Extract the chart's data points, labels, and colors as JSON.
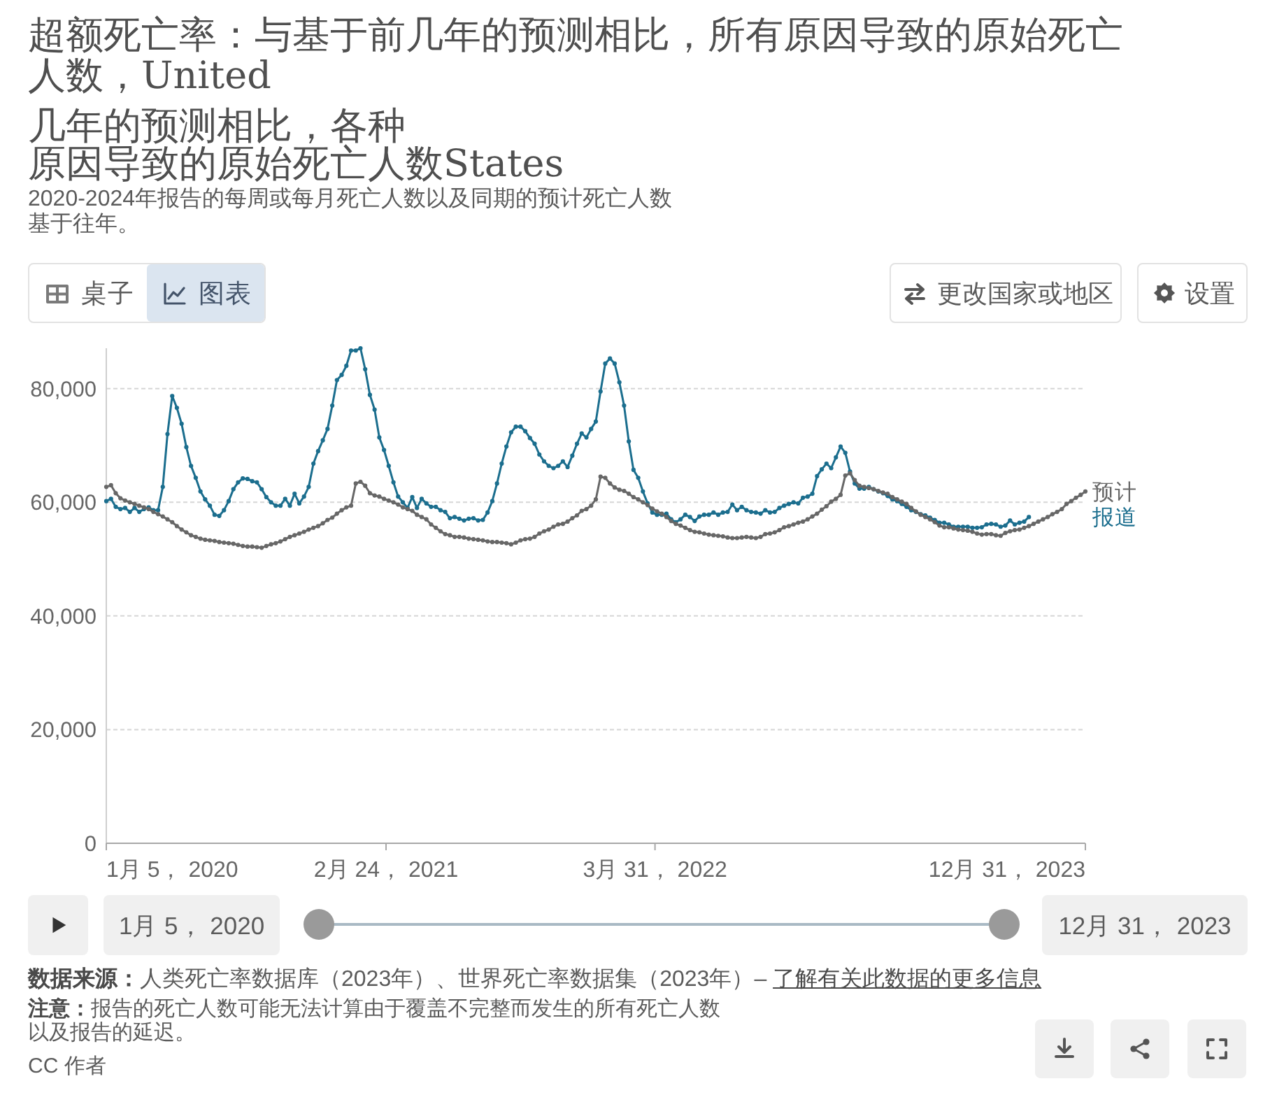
{
  "chart_data": {
    "type": "line",
    "title": "超额死亡率：与基于前几年的预测相比，所有原因导致的原始死亡人数，United",
    "subtitle": "2020-2024年报告的每周或每月死亡人数以及同期的预计死亡人数基于往年。",
    "x": [
      "2020-01-05",
      "2020-01-12",
      "2020-01-19",
      "2020-01-26",
      "2020-02-02",
      "2020-02-09",
      "2020-02-16",
      "2020-02-23",
      "2020-03-01",
      "2020-03-08",
      "2020-03-15",
      "2020-03-22",
      "2020-03-29",
      "2020-04-05",
      "2020-04-12",
      "2020-04-19",
      "2020-04-26",
      "2020-05-03",
      "2020-05-10",
      "2020-05-17",
      "2020-05-24",
      "2020-05-31",
      "2020-06-07",
      "2020-06-14",
      "2020-06-21",
      "2020-06-28",
      "2020-07-05",
      "2020-07-12",
      "2020-07-19",
      "2020-07-26",
      "2020-08-02",
      "2020-08-09",
      "2020-08-16",
      "2020-08-23",
      "2020-08-30",
      "2020-09-06",
      "2020-09-13",
      "2020-09-20",
      "2020-09-27",
      "2020-10-04",
      "2020-10-11",
      "2020-10-18",
      "2020-10-25",
      "2020-11-01",
      "2020-11-08",
      "2020-11-15",
      "2020-11-22",
      "2020-11-29",
      "2020-12-06",
      "2020-12-13",
      "2020-12-20",
      "2020-12-27",
      "2021-01-03",
      "2021-01-10",
      "2021-01-17",
      "2021-01-24",
      "2021-01-31",
      "2021-02-07",
      "2021-02-14",
      "2021-02-21",
      "2021-02-28",
      "2021-03-07",
      "2021-03-14",
      "2021-03-21",
      "2021-03-28",
      "2021-04-04",
      "2021-04-11",
      "2021-04-18",
      "2021-04-25",
      "2021-05-02",
      "2021-05-09",
      "2021-05-16",
      "2021-05-23",
      "2021-05-30",
      "2021-06-06",
      "2021-06-13",
      "2021-06-20",
      "2021-06-27",
      "2021-07-04",
      "2021-07-11",
      "2021-07-18",
      "2021-07-25",
      "2021-08-01",
      "2021-08-08",
      "2021-08-15",
      "2021-08-22",
      "2021-08-29",
      "2021-09-05",
      "2021-09-12",
      "2021-09-19",
      "2021-09-26",
      "2021-10-03",
      "2021-10-10",
      "2021-10-17",
      "2021-10-24",
      "2021-10-31",
      "2021-11-07",
      "2021-11-14",
      "2021-11-21",
      "2021-11-28",
      "2021-12-05",
      "2021-12-12",
      "2021-12-19",
      "2021-12-26",
      "2022-01-02",
      "2022-01-09",
      "2022-01-16",
      "2022-01-23",
      "2022-01-30",
      "2022-02-06",
      "2022-02-13",
      "2022-02-20",
      "2022-02-27",
      "2022-03-06",
      "2022-03-13",
      "2022-03-20",
      "2022-03-27",
      "2022-04-03",
      "2022-04-10",
      "2022-04-17",
      "2022-04-24",
      "2022-05-01",
      "2022-05-08",
      "2022-05-15",
      "2022-05-22",
      "2022-05-29",
      "2022-06-05",
      "2022-06-12",
      "2022-06-19",
      "2022-06-26",
      "2022-07-03",
      "2022-07-10",
      "2022-07-17",
      "2022-07-24",
      "2022-07-31",
      "2022-08-07",
      "2022-08-14",
      "2022-08-21",
      "2022-08-28",
      "2022-09-04",
      "2022-09-11",
      "2022-09-18",
      "2022-09-25",
      "2022-10-02",
      "2022-10-09",
      "2022-10-16",
      "2022-10-23",
      "2022-10-30",
      "2022-11-06",
      "2022-11-13",
      "2022-11-20",
      "2022-11-27",
      "2022-12-04",
      "2022-12-11",
      "2022-12-18",
      "2022-12-25",
      "2023-01-01",
      "2023-01-08",
      "2023-01-15",
      "2023-01-22",
      "2023-01-29",
      "2023-02-05",
      "2023-02-12",
      "2023-02-19",
      "2023-02-26",
      "2023-03-05",
      "2023-03-12",
      "2023-03-19",
      "2023-03-26",
      "2023-04-02",
      "2023-04-09",
      "2023-04-16",
      "2023-04-23",
      "2023-04-30",
      "2023-05-07",
      "2023-05-14",
      "2023-05-21",
      "2023-05-28",
      "2023-06-04",
      "2023-06-11",
      "2023-06-18",
      "2023-06-25",
      "2023-07-02",
      "2023-07-09",
      "2023-07-16",
      "2023-07-23",
      "2023-07-30",
      "2023-08-06",
      "2023-08-13",
      "2023-08-20",
      "2023-08-27",
      "2023-09-03",
      "2023-09-10",
      "2023-09-17",
      "2023-09-24",
      "2023-10-01",
      "2023-10-08",
      "2023-10-15",
      "2023-10-22",
      "2023-10-29",
      "2023-11-05",
      "2023-11-12",
      "2023-11-19",
      "2023-11-26",
      "2023-12-03",
      "2023-12-10",
      "2023-12-17",
      "2023-12-24",
      "2023-12-31"
    ],
    "series": [
      {
        "name": "报道",
        "color": "#1b6e8e",
        "values": [
          60200,
          60600,
          59200,
          58800,
          59000,
          58300,
          59000,
          58300,
          58800,
          59100,
          58600,
          58600,
          62700,
          72000,
          78700,
          76600,
          73800,
          69700,
          66400,
          64300,
          61900,
          60500,
          59400,
          57800,
          57600,
          58600,
          60200,
          62300,
          63500,
          64200,
          64100,
          63700,
          63500,
          62300,
          60900,
          60000,
          59400,
          59400,
          60600,
          59400,
          61500,
          59800,
          61000,
          62700,
          66800,
          69000,
          70900,
          72900,
          77000,
          81500,
          82400,
          84000,
          86700,
          86700,
          87100,
          83400,
          78900,
          76300,
          71400,
          69200,
          66400,
          63500,
          61000,
          60000,
          59000,
          60900,
          59000,
          60600,
          59800,
          59200,
          59200,
          58600,
          58300,
          57200,
          57400,
          57100,
          56800,
          57100,
          57200,
          56800,
          56900,
          58200,
          60200,
          63300,
          66800,
          69800,
          72300,
          73300,
          73300,
          72500,
          71300,
          70300,
          68400,
          67200,
          66400,
          66000,
          66400,
          67200,
          66200,
          68200,
          70300,
          72100,
          71400,
          72900,
          74200,
          79500,
          84400,
          85300,
          84400,
          81100,
          77000,
          70700,
          65700,
          64300,
          61900,
          59800,
          58200,
          57800,
          57800,
          58000,
          57000,
          56500,
          57000,
          57800,
          57400,
          56700,
          57500,
          57800,
          57800,
          58200,
          57800,
          58200,
          58300,
          59600,
          58600,
          59200,
          58600,
          58300,
          58200,
          58000,
          58600,
          58200,
          58300,
          59000,
          59400,
          59700,
          60000,
          59800,
          60800,
          61000,
          61500,
          64600,
          65800,
          66800,
          66000,
          67900,
          69800,
          68700,
          65400,
          63300,
          62400,
          62400,
          62700,
          62300,
          61900,
          61600,
          61100,
          60500,
          60200,
          59700,
          59200,
          58600,
          58300,
          57900,
          57700,
          57300,
          56900,
          56400,
          56400,
          56100,
          55700,
          55700,
          55700,
          55700,
          55500,
          55500,
          55600,
          56100,
          56200,
          56100,
          55700,
          55900,
          56800,
          56100,
          56400,
          56600,
          57400,
          null,
          null,
          null,
          null,
          null,
          null,
          null,
          null,
          null,
          null,
          null,
          null
        ]
      },
      {
        "name": "预计",
        "color": "#676767",
        "values": [
          62700,
          63000,
          61600,
          60700,
          60300,
          60000,
          59700,
          59400,
          59100,
          58800,
          58300,
          57900,
          57500,
          57000,
          56500,
          55800,
          55200,
          54700,
          54200,
          53900,
          53600,
          53400,
          53300,
          53200,
          53000,
          52900,
          52800,
          52700,
          52500,
          52300,
          52200,
          52200,
          52100,
          52000,
          52300,
          52600,
          52800,
          53100,
          53500,
          53900,
          54200,
          54500,
          54800,
          55200,
          55500,
          55800,
          56300,
          56900,
          57300,
          58000,
          58600,
          59100,
          59400,
          63300,
          63600,
          62900,
          61600,
          61200,
          61000,
          60600,
          60300,
          60000,
          59600,
          59100,
          58800,
          58500,
          57800,
          57400,
          57000,
          56100,
          55500,
          54900,
          54400,
          54200,
          53900,
          53900,
          53800,
          53600,
          53500,
          53400,
          53300,
          53100,
          53000,
          53000,
          52900,
          52800,
          52600,
          52900,
          53300,
          53500,
          53600,
          53900,
          54500,
          54900,
          55200,
          55700,
          56100,
          56200,
          56600,
          57200,
          57700,
          58500,
          58800,
          59400,
          60500,
          64500,
          64300,
          63300,
          62600,
          62200,
          62000,
          61500,
          60900,
          60500,
          60000,
          59500,
          58900,
          58400,
          58000,
          57400,
          56700,
          56200,
          55900,
          55500,
          55100,
          54800,
          54700,
          54500,
          54300,
          54200,
          54100,
          54000,
          53800,
          53700,
          53700,
          53800,
          53900,
          53800,
          53700,
          53900,
          54400,
          54500,
          54700,
          55100,
          55600,
          55800,
          56100,
          56400,
          56600,
          57000,
          57500,
          58000,
          58700,
          59300,
          60100,
          60600,
          61300,
          64700,
          65100,
          63900,
          62900,
          62700,
          62500,
          62300,
          62000,
          61700,
          61500,
          60900,
          60500,
          60100,
          59700,
          59000,
          58400,
          57800,
          57400,
          57000,
          56500,
          55900,
          55600,
          55600,
          55400,
          55200,
          55100,
          55000,
          54800,
          54500,
          54300,
          54400,
          54400,
          54200,
          54100,
          54600,
          54900,
          55100,
          55200,
          55500,
          55800,
          56200,
          56600,
          57000,
          57400,
          57900,
          58300,
          58800,
          59700,
          60200,
          60800,
          61300,
          61900
        ]
      }
    ],
    "xlim": [
      "2020-01-05",
      "2023-12-31"
    ],
    "xticks": [
      {
        "value": "2020-01-05",
        "label": "1月 5， 2020"
      },
      {
        "value": "2021-02-24",
        "label": "2月 24， 2021"
      },
      {
        "value": "2022-03-31",
        "label": "3月 31， 2022"
      },
      {
        "value": "2023-12-31",
        "label": "12月 31， 2023"
      }
    ],
    "ylim": [
      0,
      87100
    ],
    "yticks": [
      0,
      {
        "value": 20000,
        "label": "20,000"
      },
      {
        "value": 40000,
        "label": "40,000"
      },
      {
        "value": 60000,
        "label": "60,000"
      },
      {
        "value": 80000,
        "label": "80,000"
      }
    ],
    "grid": "y",
    "legend": "right",
    "marker": "circle",
    "annotations": [
      "几年的预测相比，各种",
      "原因导致的原始死亡人数States",
      "桌子",
      "图表",
      "更改国家或地区",
      "设置",
      "1月 5， 2020",
      "12月 31， 2023",
      "数据来源：",
      "人类死亡率数据库（2023年）、世界死亡率数据集（2023年）–",
      "了解有关此数据的更多信息",
      "注意：",
      "报告的死亡人数可能无法计算由于覆盖不完整而发生的所有死亡人数以及报告的延迟。",
      "CC 作者"
    ]
  }
}
